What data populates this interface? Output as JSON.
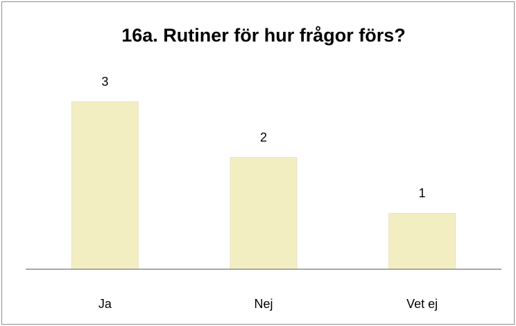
{
  "chart_data": {
    "type": "bar",
    "title": "16a. Rutiner för hur frågor förs?",
    "categories": [
      "Ja",
      "Nej",
      "Vet ej"
    ],
    "values": [
      3,
      2,
      1
    ],
    "color": "#f3edc2"
  }
}
